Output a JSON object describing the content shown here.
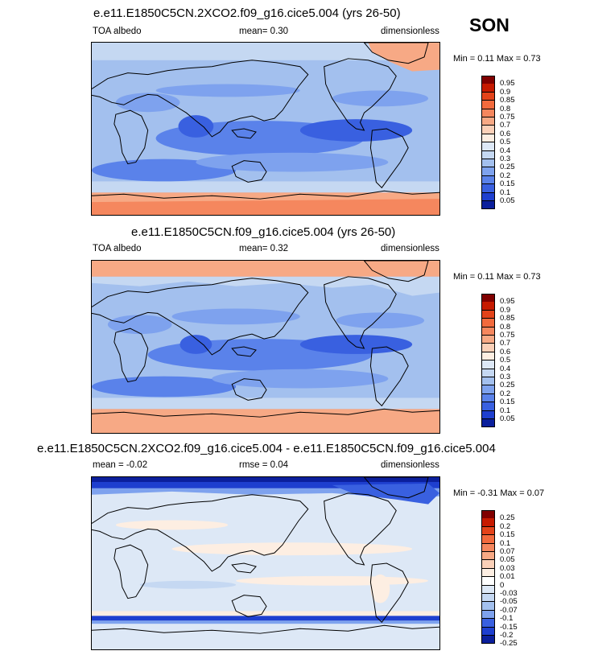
{
  "season": "SON",
  "panels": [
    {
      "title": "e.e11.E1850C5CN.2XCO2.f09_g16.cice5.004 (yrs 26-50)",
      "left_label": "TOA albedo",
      "center_label": "mean=  0.30",
      "right_label": "dimensionless",
      "minmax": "Min =  0.11 Max =  0.73",
      "colorbar": {
        "colors": [
          "#800000",
          "#c61a00",
          "#e3431a",
          "#f26a3d",
          "#f5875e",
          "#f7a985",
          "#fbd0b8",
          "#fdeee2",
          "#dde8f6",
          "#c5d8f2",
          "#a3c0ee",
          "#7ea2ee",
          "#5a82ea",
          "#3960e0",
          "#1e3fcf",
          "#0b1f9c"
        ],
        "labels": [
          "0.95",
          "0.9",
          "0.85",
          "0.8",
          "0.75",
          "0.7",
          "0.6",
          "0.5",
          "0.4",
          "0.3",
          "0.25",
          "0.2",
          "0.15",
          "0.1",
          "0.05"
        ]
      }
    },
    {
      "title": "e.e11.E1850C5CN.f09_g16.cice5.004 (yrs 26-50)",
      "left_label": "TOA albedo",
      "center_label": "mean=  0.32",
      "right_label": "dimensionless",
      "minmax": "Min =  0.11 Max =  0.73",
      "colorbar": {
        "colors": [
          "#800000",
          "#c61a00",
          "#e3431a",
          "#f26a3d",
          "#f5875e",
          "#f7a985",
          "#fbd0b8",
          "#fdeee2",
          "#dde8f6",
          "#c5d8f2",
          "#a3c0ee",
          "#7ea2ee",
          "#5a82ea",
          "#3960e0",
          "#1e3fcf",
          "#0b1f9c"
        ],
        "labels": [
          "0.95",
          "0.9",
          "0.85",
          "0.8",
          "0.75",
          "0.7",
          "0.6",
          "0.5",
          "0.4",
          "0.3",
          "0.25",
          "0.2",
          "0.15",
          "0.1",
          "0.05"
        ]
      }
    },
    {
      "title": "e.e11.E1850C5CN.2XCO2.f09_g16.cice5.004 - e.e11.E1850C5CN.f09_g16.cice5.004",
      "left_label": "mean = -0.02",
      "center_label": "rmse =  0.04",
      "right_label": "dimensionless",
      "minmax": "Min = -0.31 Max =  0.07",
      "colorbar": {
        "colors": [
          "#800000",
          "#c61a00",
          "#e3431a",
          "#f26a3d",
          "#f5875e",
          "#f7a985",
          "#fbd0b8",
          "#fdeee2",
          "#ffffff",
          "#dde8f6",
          "#c5d8f2",
          "#a3c0ee",
          "#7ea2ee",
          "#3960e0",
          "#1e3fcf",
          "#0b1f9c"
        ],
        "labels": [
          "0.25",
          "0.2",
          "0.15",
          "0.1",
          "0.07",
          "0.05",
          "0.03",
          "0.01",
          "0",
          "-0.03",
          "-0.05",
          "-0.07",
          "-0.1",
          "-0.15",
          "-0.2",
          "-0.25"
        ]
      }
    }
  ]
}
